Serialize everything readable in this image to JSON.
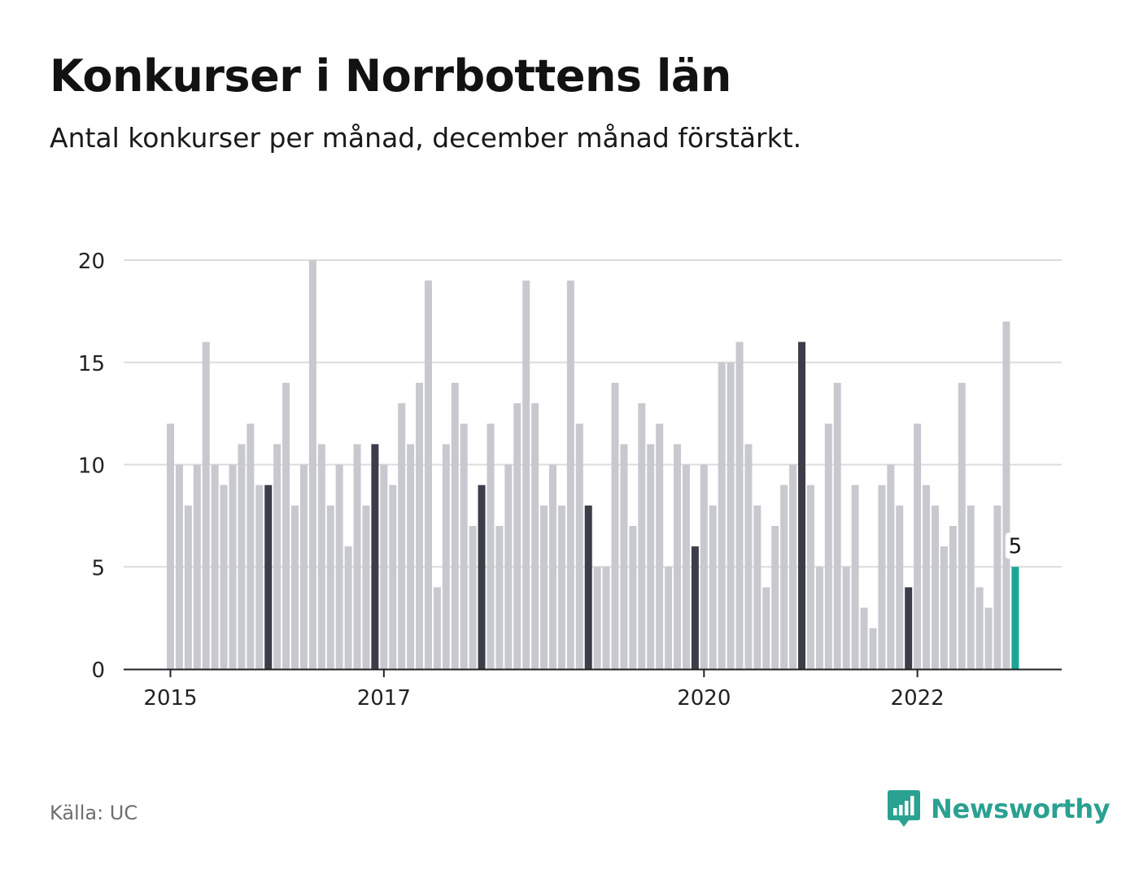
{
  "title": "Konkurser i Norrbottens län",
  "subtitle": "Antal konkurser per månad, december månad förstärkt.",
  "source": "Källa: UC",
  "brand": {
    "name": "Newsworthy",
    "icon": "newsworthy-logo-icon"
  },
  "colors": {
    "bar": "#c8c8cf",
    "december": "#3d3d4a",
    "latest": "#19a696",
    "grid": "#dcdcdc",
    "axis": "#222222",
    "brand": "#2aa191"
  },
  "chart_data": {
    "type": "bar",
    "start": "2015-01",
    "x_tick_labels": [
      "2015",
      "2017",
      "2020",
      "2022"
    ],
    "y_ticks": [
      0,
      5,
      10,
      15,
      20
    ],
    "ylim": [
      0,
      20
    ],
    "highlight": "december",
    "latest_label": "5",
    "values": [
      12,
      10,
      8,
      10,
      16,
      10,
      9,
      10,
      11,
      12,
      9,
      9,
      11,
      14,
      8,
      10,
      20,
      11,
      8,
      10,
      6,
      11,
      8,
      11,
      10,
      9,
      13,
      11,
      14,
      19,
      4,
      11,
      14,
      12,
      7,
      9,
      12,
      7,
      10,
      13,
      19,
      13,
      8,
      10,
      8,
      19,
      12,
      8,
      5,
      5,
      14,
      11,
      7,
      13,
      11,
      12,
      5,
      11,
      10,
      6,
      10,
      8,
      15,
      15,
      16,
      11,
      8,
      4,
      7,
      9,
      10,
      16,
      9,
      5,
      12,
      14,
      5,
      9,
      3,
      2,
      9,
      10,
      8,
      4,
      12,
      9,
      8,
      6,
      7,
      14,
      8,
      4,
      3,
      8,
      17,
      5
    ]
  }
}
